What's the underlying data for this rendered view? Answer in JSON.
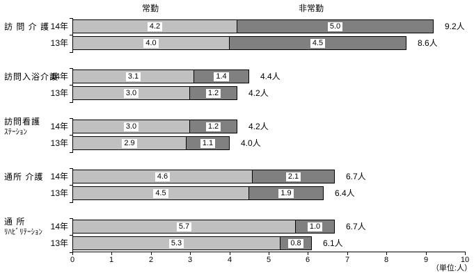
{
  "chart_data": {
    "type": "bar",
    "stacked": true,
    "orientation": "horizontal",
    "title": "",
    "unit_note": "（単位:人）",
    "xlim": [
      0,
      10
    ],
    "x_ticks": [
      "0",
      "1",
      "2",
      "3",
      "4",
      "5",
      "6",
      "7",
      "8",
      "9",
      "10"
    ],
    "grid": false,
    "legend_position": "top-inline-headers",
    "series": [
      {
        "name": "常勤",
        "color": "#c0c0c0"
      },
      {
        "name": "非常勤",
        "color": "#808080"
      }
    ],
    "groups": [
      {
        "category_lines": [
          "訪 問 介 護"
        ],
        "rows": [
          {
            "year": "14年",
            "values": [
              4.2,
              5.0
            ],
            "value_labels": [
              "4.2",
              "5.0"
            ],
            "total_label": "9.2人"
          },
          {
            "year": "13年",
            "values": [
              4.0,
              4.5
            ],
            "value_labels": [
              "4.0",
              "4.5"
            ],
            "total_label": "8.6人"
          }
        ]
      },
      {
        "category_lines": [
          "訪問入浴介護"
        ],
        "rows": [
          {
            "year": "14年",
            "values": [
              3.1,
              1.4
            ],
            "value_labels": [
              "3.1",
              "1.4"
            ],
            "total_label": "4.4人"
          },
          {
            "year": "13年",
            "values": [
              3.0,
              1.2
            ],
            "value_labels": [
              "3.0",
              "1.2"
            ],
            "total_label": "4.2人"
          }
        ]
      },
      {
        "category_lines": [
          "訪問看護",
          "ｽﾃｰｼｮﾝ"
        ],
        "rows": [
          {
            "year": "14年",
            "values": [
              3.0,
              1.2
            ],
            "value_labels": [
              "3.0",
              "1.2"
            ],
            "total_label": "4.2人"
          },
          {
            "year": "13年",
            "values": [
              2.9,
              1.1
            ],
            "value_labels": [
              "2.9",
              "1.1"
            ],
            "total_label": "4.0人"
          }
        ]
      },
      {
        "category_lines": [
          "通所 介護"
        ],
        "rows": [
          {
            "year": "14年",
            "values": [
              4.6,
              2.1
            ],
            "value_labels": [
              "4.6",
              "2.1"
            ],
            "total_label": "6.7人"
          },
          {
            "year": "13年",
            "values": [
              4.5,
              1.9
            ],
            "value_labels": [
              "4.5",
              "1.9"
            ],
            "total_label": "6.4人"
          }
        ]
      },
      {
        "category_lines": [
          "通 所",
          "ﾘﾊﾋﾞﾘﾃｰｼｮﾝ"
        ],
        "rows": [
          {
            "year": "14年",
            "values": [
              5.7,
              1.0
            ],
            "value_labels": [
              "5.7",
              "1.0"
            ],
            "total_label": "6.7人"
          },
          {
            "year": "13年",
            "values": [
              5.3,
              0.8
            ],
            "value_labels": [
              "5.3",
              "0.8"
            ],
            "total_label": "6.1人"
          }
        ]
      }
    ]
  }
}
